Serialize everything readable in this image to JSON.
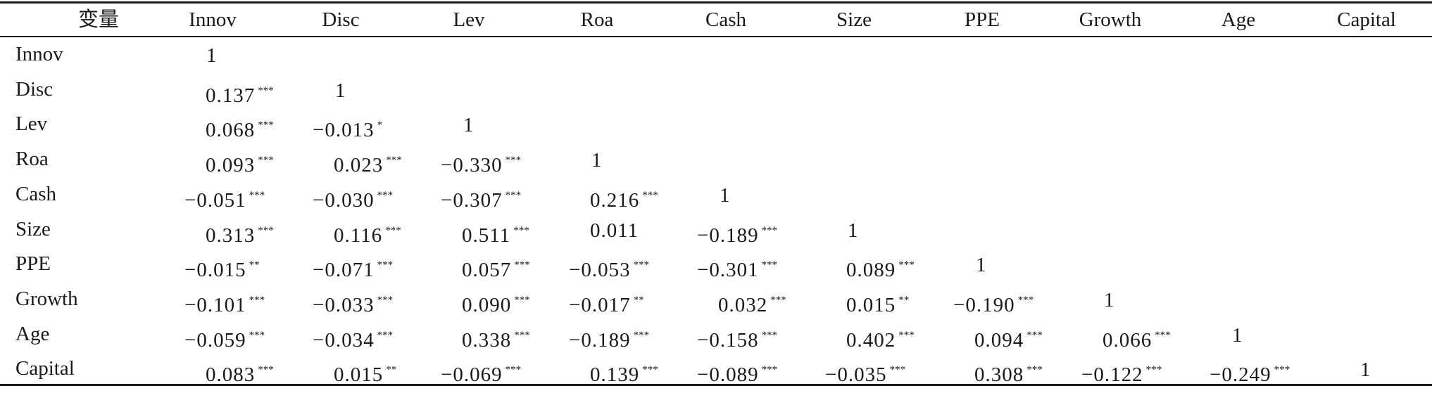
{
  "table": {
    "header_label": "变量",
    "columns": [
      "Innov",
      "Disc",
      "Lev",
      "Roa",
      "Cash",
      "Size",
      "PPE",
      "Growth",
      "Age",
      "Capital"
    ],
    "rows": [
      {
        "label": "Innov",
        "cells": [
          {
            "v": "1",
            "s": ""
          }
        ]
      },
      {
        "label": "Disc",
        "cells": [
          {
            "v": "0.137",
            "s": "***"
          },
          {
            "v": "1",
            "s": ""
          }
        ]
      },
      {
        "label": "Lev",
        "cells": [
          {
            "v": "0.068",
            "s": "***"
          },
          {
            "v": "−0.013",
            "s": "*"
          },
          {
            "v": "1",
            "s": ""
          }
        ]
      },
      {
        "label": "Roa",
        "cells": [
          {
            "v": "0.093",
            "s": "***"
          },
          {
            "v": "0.023",
            "s": "***"
          },
          {
            "v": "−0.330",
            "s": "***"
          },
          {
            "v": "1",
            "s": ""
          }
        ]
      },
      {
        "label": "Cash",
        "cells": [
          {
            "v": "−0.051",
            "s": "***"
          },
          {
            "v": "−0.030",
            "s": "***"
          },
          {
            "v": "−0.307",
            "s": "***"
          },
          {
            "v": "0.216",
            "s": "***"
          },
          {
            "v": "1",
            "s": ""
          }
        ]
      },
      {
        "label": "Size",
        "cells": [
          {
            "v": "0.313",
            "s": "***"
          },
          {
            "v": "0.116",
            "s": "***"
          },
          {
            "v": "0.511",
            "s": "***"
          },
          {
            "v": "0.011",
            "s": ""
          },
          {
            "v": "−0.189",
            "s": "***"
          },
          {
            "v": "1",
            "s": ""
          }
        ]
      },
      {
        "label": "PPE",
        "cells": [
          {
            "v": "−0.015",
            "s": "**"
          },
          {
            "v": "−0.071",
            "s": "***"
          },
          {
            "v": "0.057",
            "s": "***"
          },
          {
            "v": "−0.053",
            "s": "***"
          },
          {
            "v": "−0.301",
            "s": "***"
          },
          {
            "v": "0.089",
            "s": "***"
          },
          {
            "v": "1",
            "s": ""
          }
        ]
      },
      {
        "label": "Growth",
        "cells": [
          {
            "v": "−0.101",
            "s": "***"
          },
          {
            "v": "−0.033",
            "s": "***"
          },
          {
            "v": "0.090",
            "s": "***"
          },
          {
            "v": "−0.017",
            "s": "**"
          },
          {
            "v": "0.032",
            "s": "***"
          },
          {
            "v": "0.015",
            "s": "**"
          },
          {
            "v": "−0.190",
            "s": "***"
          },
          {
            "v": "1",
            "s": ""
          }
        ]
      },
      {
        "label": "Age",
        "cells": [
          {
            "v": "−0.059",
            "s": "***"
          },
          {
            "v": "−0.034",
            "s": "***"
          },
          {
            "v": "0.338",
            "s": "***"
          },
          {
            "v": "−0.189",
            "s": "***"
          },
          {
            "v": "−0.158",
            "s": "***"
          },
          {
            "v": "0.402",
            "s": "***"
          },
          {
            "v": "0.094",
            "s": "***"
          },
          {
            "v": "0.066",
            "s": "***"
          },
          {
            "v": "1",
            "s": ""
          }
        ]
      },
      {
        "label": "Capital",
        "cells": [
          {
            "v": "0.083",
            "s": "***"
          },
          {
            "v": "0.015",
            "s": "**"
          },
          {
            "v": "−0.069",
            "s": "***"
          },
          {
            "v": "0.139",
            "s": "***"
          },
          {
            "v": "−0.089",
            "s": "***"
          },
          {
            "v": "−0.035",
            "s": "***"
          },
          {
            "v": "0.308",
            "s": "***"
          },
          {
            "v": "−0.122",
            "s": "***"
          },
          {
            "v": "−0.249",
            "s": "***"
          },
          {
            "v": "1",
            "s": ""
          }
        ]
      }
    ]
  }
}
